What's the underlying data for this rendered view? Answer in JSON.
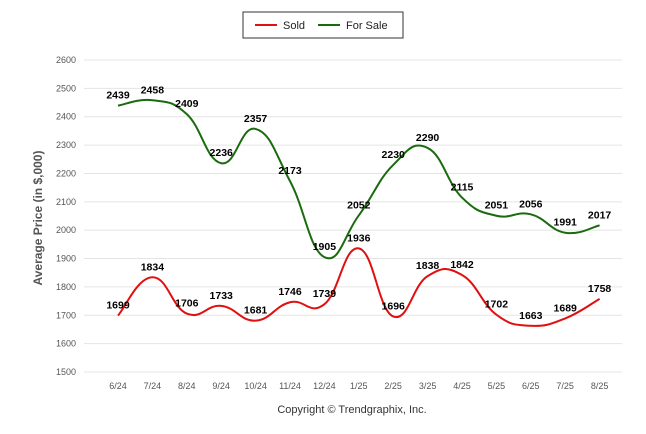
{
  "chart_data": {
    "type": "line",
    "title": "",
    "xlabel": "",
    "ylabel": "Average Price (in $,000)",
    "footer": "Copyright © Trendgraphix, Inc.",
    "ylim": [
      1500,
      2600
    ],
    "yticks": [
      1500,
      1600,
      1700,
      1800,
      1900,
      2000,
      2100,
      2200,
      2300,
      2400,
      2500,
      2600
    ],
    "grid": true,
    "legend_position": "top-center",
    "categories": [
      "6/24",
      "7/24",
      "8/24",
      "9/24",
      "10/24",
      "11/24",
      "12/24",
      "1/25",
      "2/25",
      "3/25",
      "4/25",
      "5/25",
      "6/25",
      "7/25",
      "8/25"
    ],
    "series": [
      {
        "name": "Sold",
        "color": "#e01010",
        "values": [
          1699,
          1834,
          1706,
          1733,
          1681,
          1746,
          1739,
          1936,
          1696,
          1838,
          1842,
          1702,
          1663,
          1689,
          1758
        ]
      },
      {
        "name": "For Sale",
        "color": "#1a6b0e",
        "values": [
          2439,
          2458,
          2409,
          2236,
          2357,
          2173,
          1905,
          2052,
          2230,
          2290,
          2115,
          2051,
          2056,
          1991,
          2017
        ]
      }
    ]
  }
}
